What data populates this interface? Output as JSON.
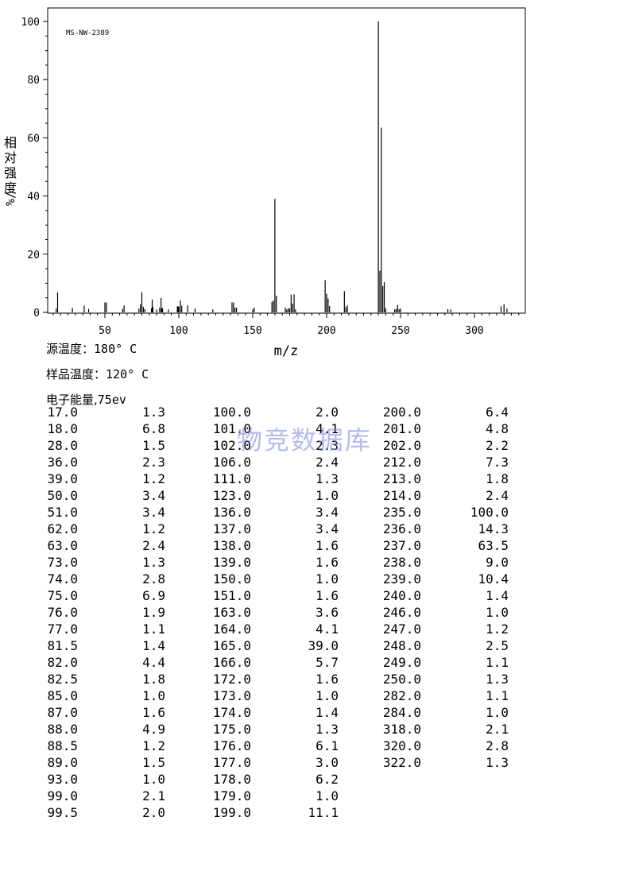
{
  "chart_data": {
    "type": "bar",
    "title": "MS-NW-2389",
    "xlabel": "m/z",
    "ylabel_chars": [
      "相",
      "对",
      "强",
      "度",
      "%/"
    ],
    "xlim": [
      10,
      333
    ],
    "ylim": [
      0,
      104
    ],
    "xticks": [
      50,
      100,
      150,
      200,
      250,
      300
    ],
    "yticks": [
      0,
      20,
      40,
      60,
      80,
      100
    ],
    "peaks": [
      {
        "mz": 17.0,
        "ab": 1.3
      },
      {
        "mz": 18.0,
        "ab": 6.8
      },
      {
        "mz": 28.0,
        "ab": 1.5
      },
      {
        "mz": 36.0,
        "ab": 2.3
      },
      {
        "mz": 39.0,
        "ab": 1.2
      },
      {
        "mz": 50.0,
        "ab": 3.4
      },
      {
        "mz": 51.0,
        "ab": 3.4
      },
      {
        "mz": 62.0,
        "ab": 1.2
      },
      {
        "mz": 63.0,
        "ab": 2.4
      },
      {
        "mz": 73.0,
        "ab": 1.3
      },
      {
        "mz": 74.0,
        "ab": 2.8
      },
      {
        "mz": 75.0,
        "ab": 6.9
      },
      {
        "mz": 76.0,
        "ab": 1.9
      },
      {
        "mz": 77.0,
        "ab": 1.1
      },
      {
        "mz": 81.5,
        "ab": 1.4
      },
      {
        "mz": 82.0,
        "ab": 4.4
      },
      {
        "mz": 82.5,
        "ab": 1.8
      },
      {
        "mz": 85.0,
        "ab": 1.0
      },
      {
        "mz": 87.0,
        "ab": 1.6
      },
      {
        "mz": 88.0,
        "ab": 4.9
      },
      {
        "mz": 88.5,
        "ab": 1.2
      },
      {
        "mz": 89.0,
        "ab": 1.5
      },
      {
        "mz": 93.0,
        "ab": 1.0
      },
      {
        "mz": 99.0,
        "ab": 2.1
      },
      {
        "mz": 99.5,
        "ab": 2.0
      },
      {
        "mz": 100.0,
        "ab": 2.0
      },
      {
        "mz": 101.0,
        "ab": 4.1
      },
      {
        "mz": 102.0,
        "ab": 2.3
      },
      {
        "mz": 106.0,
        "ab": 2.4
      },
      {
        "mz": 111.0,
        "ab": 1.3
      },
      {
        "mz": 123.0,
        "ab": 1.0
      },
      {
        "mz": 136.0,
        "ab": 3.4
      },
      {
        "mz": 137.0,
        "ab": 3.4
      },
      {
        "mz": 138.0,
        "ab": 1.6
      },
      {
        "mz": 139.0,
        "ab": 1.6
      },
      {
        "mz": 150.0,
        "ab": 1.0
      },
      {
        "mz": 151.0,
        "ab": 1.6
      },
      {
        "mz": 163.0,
        "ab": 3.6
      },
      {
        "mz": 164.0,
        "ab": 4.1
      },
      {
        "mz": 165.0,
        "ab": 39.0
      },
      {
        "mz": 166.0,
        "ab": 5.7
      },
      {
        "mz": 172.0,
        "ab": 1.6
      },
      {
        "mz": 173.0,
        "ab": 1.0
      },
      {
        "mz": 174.0,
        "ab": 1.4
      },
      {
        "mz": 175.0,
        "ab": 1.3
      },
      {
        "mz": 176.0,
        "ab": 6.1
      },
      {
        "mz": 177.0,
        "ab": 3.0
      },
      {
        "mz": 178.0,
        "ab": 6.2
      },
      {
        "mz": 179.0,
        "ab": 1.0
      },
      {
        "mz": 199.0,
        "ab": 11.1
      },
      {
        "mz": 200.0,
        "ab": 6.4
      },
      {
        "mz": 201.0,
        "ab": 4.8
      },
      {
        "mz": 202.0,
        "ab": 2.2
      },
      {
        "mz": 212.0,
        "ab": 7.3
      },
      {
        "mz": 213.0,
        "ab": 1.8
      },
      {
        "mz": 214.0,
        "ab": 2.4
      },
      {
        "mz": 235.0,
        "ab": 100.0
      },
      {
        "mz": 236.0,
        "ab": 14.3
      },
      {
        "mz": 237.0,
        "ab": 63.5
      },
      {
        "mz": 238.0,
        "ab": 9.0
      },
      {
        "mz": 239.0,
        "ab": 10.4
      },
      {
        "mz": 240.0,
        "ab": 1.4
      },
      {
        "mz": 246.0,
        "ab": 1.0
      },
      {
        "mz": 247.0,
        "ab": 1.2
      },
      {
        "mz": 248.0,
        "ab": 2.5
      },
      {
        "mz": 249.0,
        "ab": 1.1
      },
      {
        "mz": 250.0,
        "ab": 1.3
      },
      {
        "mz": 282.0,
        "ab": 1.1
      },
      {
        "mz": 284.0,
        "ab": 1.0
      },
      {
        "mz": 318.0,
        "ab": 2.1
      },
      {
        "mz": 320.0,
        "ab": 2.8
      },
      {
        "mz": 322.0,
        "ab": 1.3
      }
    ]
  },
  "conditions": {
    "source_temp_label": "源温度：",
    "source_temp_value": "180° C",
    "sample_temp_label": "样品温度：",
    "sample_temp_value": "120° C",
    "electron_energy_label": "电子能量,",
    "electron_energy_value": "75ev"
  },
  "table": {
    "columns": [
      [
        [
          "17.0",
          "1.3"
        ],
        [
          "18.0",
          "6.8"
        ],
        [
          "28.0",
          "1.5"
        ],
        [
          "36.0",
          "2.3"
        ],
        [
          "39.0",
          "1.2"
        ],
        [
          "50.0",
          "3.4"
        ],
        [
          "51.0",
          "3.4"
        ],
        [
          "62.0",
          "1.2"
        ],
        [
          "63.0",
          "2.4"
        ],
        [
          "73.0",
          "1.3"
        ],
        [
          "74.0",
          "2.8"
        ],
        [
          "75.0",
          "6.9"
        ],
        [
          "76.0",
          "1.9"
        ],
        [
          "77.0",
          "1.1"
        ],
        [
          "81.5",
          "1.4"
        ],
        [
          "82.0",
          "4.4"
        ],
        [
          "82.5",
          "1.8"
        ],
        [
          "85.0",
          "1.0"
        ],
        [
          "87.0",
          "1.6"
        ],
        [
          "88.0",
          "4.9"
        ],
        [
          "88.5",
          "1.2"
        ],
        [
          "89.0",
          "1.5"
        ],
        [
          "93.0",
          "1.0"
        ],
        [
          "99.0",
          "2.1"
        ],
        [
          "99.5",
          "2.0"
        ]
      ],
      [
        [
          "100.0",
          "2.0"
        ],
        [
          "101.0",
          "4.1"
        ],
        [
          "102.0",
          "2.3"
        ],
        [
          "106.0",
          "2.4"
        ],
        [
          "111.0",
          "1.3"
        ],
        [
          "123.0",
          "1.0"
        ],
        [
          "136.0",
          "3.4"
        ],
        [
          "137.0",
          "3.4"
        ],
        [
          "138.0",
          "1.6"
        ],
        [
          "139.0",
          "1.6"
        ],
        [
          "150.0",
          "1.0"
        ],
        [
          "151.0",
          "1.6"
        ],
        [
          "163.0",
          "3.6"
        ],
        [
          "164.0",
          "4.1"
        ],
        [
          "165.0",
          "39.0"
        ],
        [
          "166.0",
          "5.7"
        ],
        [
          "172.0",
          "1.6"
        ],
        [
          "173.0",
          "1.0"
        ],
        [
          "174.0",
          "1.4"
        ],
        [
          "175.0",
          "1.3"
        ],
        [
          "176.0",
          "6.1"
        ],
        [
          "177.0",
          "3.0"
        ],
        [
          "178.0",
          "6.2"
        ],
        [
          "179.0",
          "1.0"
        ],
        [
          "199.0",
          "11.1"
        ]
      ],
      [
        [
          "200.0",
          "6.4"
        ],
        [
          "201.0",
          "4.8"
        ],
        [
          "202.0",
          "2.2"
        ],
        [
          "212.0",
          "7.3"
        ],
        [
          "213.0",
          "1.8"
        ],
        [
          "214.0",
          "2.4"
        ],
        [
          "235.0",
          "100.0"
        ],
        [
          "236.0",
          "14.3"
        ],
        [
          "237.0",
          "63.5"
        ],
        [
          "238.0",
          "9.0"
        ],
        [
          "239.0",
          "10.4"
        ],
        [
          "240.0",
          "1.4"
        ],
        [
          "246.0",
          "1.0"
        ],
        [
          "247.0",
          "1.2"
        ],
        [
          "248.0",
          "2.5"
        ],
        [
          "249.0",
          "1.1"
        ],
        [
          "250.0",
          "1.3"
        ],
        [
          "282.0",
          "1.1"
        ],
        [
          "284.0",
          "1.0"
        ],
        [
          "318.0",
          "2.1"
        ],
        [
          "320.0",
          "2.8"
        ],
        [
          "322.0",
          "1.3"
        ]
      ]
    ]
  },
  "watermark": "物竞数据库"
}
